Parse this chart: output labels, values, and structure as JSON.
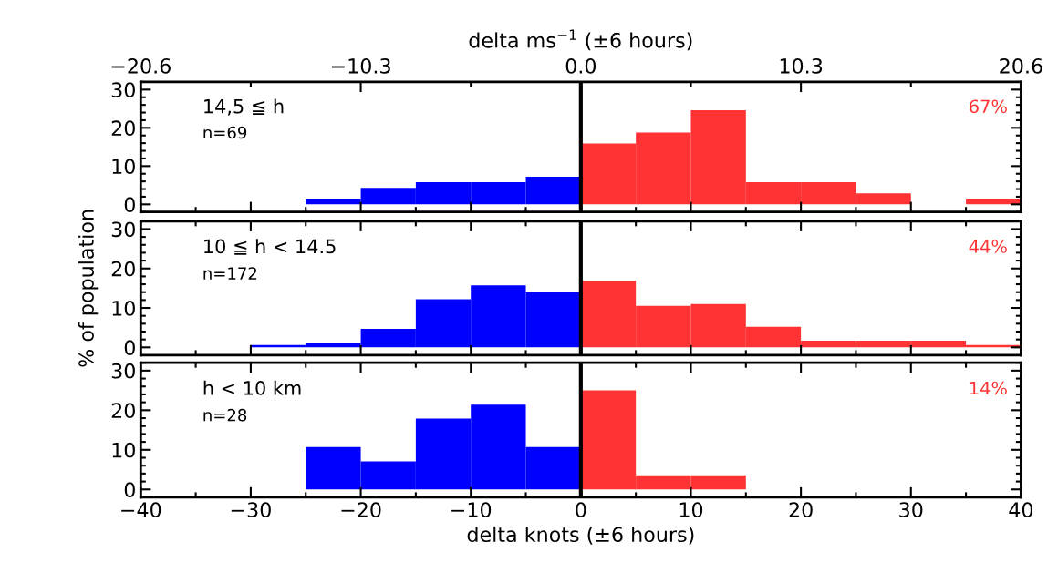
{
  "chart_data": [
    {
      "type": "histogram",
      "bins": [
        -40,
        -35,
        -30,
        -25,
        -20,
        -15,
        -10,
        -5,
        0,
        5,
        10,
        15,
        20,
        25,
        30,
        35,
        40
      ],
      "values": [
        0,
        0,
        0,
        1.5,
        4.3,
        5.8,
        5.8,
        7.2,
        15.9,
        18.8,
        24.6,
        5.8,
        5.8,
        2.9,
        0,
        1.5
      ],
      "colors": [
        "#0000ff",
        "#0000ff",
        "#0000ff",
        "#0000ff",
        "#0000ff",
        "#0000ff",
        "#0000ff",
        "#0000ff",
        "#ff3333",
        "#ff3333",
        "#ff3333",
        "#ff3333",
        "#ff3333",
        "#ff3333",
        "#ff3333",
        "#ff3333"
      ],
      "xlim": [
        -40,
        40
      ],
      "ylim": [
        -2,
        32
      ],
      "yticks": [
        0,
        10,
        20,
        30
      ],
      "xticks": [
        {
          "value": -40,
          "label": null
        },
        {
          "value": -30,
          "label": null
        },
        {
          "value": -20,
          "label": null
        },
        {
          "value": -10,
          "label": null
        },
        {
          "value": 0,
          "label": null
        },
        {
          "value": 10,
          "label": null
        },
        {
          "value": 20,
          "label": null
        },
        {
          "value": 30,
          "label": null
        },
        {
          "value": 40,
          "label": null
        }
      ],
      "x2lim": [
        -20.6,
        20.6
      ],
      "x2label": "delta ms$^{−1}$ (±6 hours)",
      "x2ticks": [
        {
          "value": -20.6,
          "label": "−20.6"
        },
        {
          "value": -10.3,
          "label": "−10.3"
        },
        {
          "value": 0.0,
          "label": "0.0"
        },
        {
          "value": 10.3,
          "label": "10.3"
        },
        {
          "value": 20.6,
          "label": "20.6"
        }
      ],
      "tick_labels": "y",
      "ref_lines": [
        {
          "axis": "x",
          "value": 0,
          "color": "#000000"
        }
      ],
      "annotations": [
        "14,5 ≦ h",
        "n=69",
        "67%"
      ]
    },
    {
      "type": "histogram",
      "bins": [
        -40,
        -35,
        -30,
        -25,
        -20,
        -15,
        -10,
        -5,
        0,
        5,
        10,
        15,
        20,
        25,
        30,
        35,
        40
      ],
      "values": [
        0,
        0,
        0.6,
        1.2,
        4.7,
        12.2,
        15.7,
        14,
        16.9,
        10.5,
        11,
        5.2,
        1.7,
        1.7,
        1.7,
        0.6
      ],
      "colors": [
        "#0000ff",
        "#0000ff",
        "#0000ff",
        "#0000ff",
        "#0000ff",
        "#0000ff",
        "#0000ff",
        "#0000ff",
        "#ff3333",
        "#ff3333",
        "#ff3333",
        "#ff3333",
        "#ff3333",
        "#ff3333",
        "#ff3333",
        "#ff3333"
      ],
      "xlim": [
        -40,
        40
      ],
      "ylim": [
        -2,
        32
      ],
      "yticks": [
        0,
        10,
        20,
        30
      ],
      "xticks": [
        {
          "value": -40,
          "label": null
        },
        {
          "value": -30,
          "label": null
        },
        {
          "value": -20,
          "label": null
        },
        {
          "value": -10,
          "label": null
        },
        {
          "value": 0,
          "label": null
        },
        {
          "value": 10,
          "label": null
        },
        {
          "value": 20,
          "label": null
        },
        {
          "value": 30,
          "label": null
        },
        {
          "value": 40,
          "label": null
        }
      ],
      "tick_labels": "y",
      "ylabel": "% of population",
      "ref_lines": [
        {
          "axis": "x",
          "value": 0,
          "color": "#000000"
        }
      ],
      "annotations": [
        "10 ≦ h < 14.5",
        "n=172",
        "44%"
      ]
    },
    {
      "type": "histogram",
      "bins": [
        -40,
        -35,
        -30,
        -25,
        -20,
        -15,
        -10,
        -5,
        0,
        5,
        10,
        15,
        20,
        25,
        30,
        35,
        40
      ],
      "values": [
        0,
        0,
        0,
        10.7,
        7.1,
        17.9,
        21.4,
        10.7,
        25,
        3.6,
        3.6,
        0,
        0,
        0,
        0,
        0
      ],
      "colors": [
        "#0000ff",
        "#0000ff",
        "#0000ff",
        "#0000ff",
        "#0000ff",
        "#0000ff",
        "#0000ff",
        "#0000ff",
        "#ff3333",
        "#ff3333",
        "#ff3333",
        "#ff3333",
        "#ff3333",
        "#ff3333",
        "#ff3333",
        "#ff3333"
      ],
      "xlim": [
        -40,
        40
      ],
      "ylim": [
        -2,
        32
      ],
      "yticks": [
        0,
        10,
        20,
        30
      ],
      "xticks": [
        {
          "value": -40,
          "label": "−40"
        },
        {
          "value": -30,
          "label": "−30"
        },
        {
          "value": -20,
          "label": "−20"
        },
        {
          "value": -10,
          "label": "−10"
        },
        {
          "value": 0,
          "label": "0"
        },
        {
          "value": 10,
          "label": "10"
        },
        {
          "value": 20,
          "label": "20"
        },
        {
          "value": 30,
          "label": "30"
        },
        {
          "value": 40,
          "label": "40"
        }
      ],
      "xlabel": "delta knots (±6 hours)",
      "ref_lines": [
        {
          "axis": "x",
          "value": 0,
          "color": "#000000"
        }
      ],
      "annotations": [
        "h < 10 km",
        "n=28",
        "14%"
      ]
    }
  ]
}
